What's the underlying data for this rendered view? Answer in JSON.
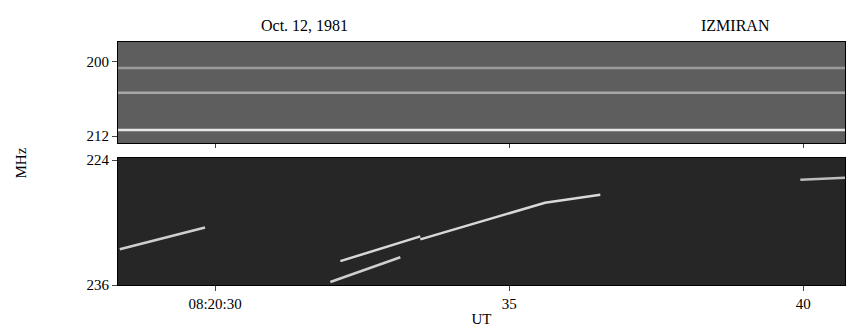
{
  "chart_data": {
    "type": "line",
    "title": "Oct. 12, 1981",
    "annotations": [
      "IZMIRAN"
    ],
    "x_label": "UT",
    "y_label": "MHz",
    "xlim": [
      28.35,
      40.71
    ],
    "xticks": [
      {
        "value": 30,
        "label": "08:20:30"
      },
      35,
      40
    ],
    "grid": false,
    "panels": [
      {
        "ylim": [
          213.1,
          196.8
        ],
        "yticks": [
          200,
          212
        ],
        "series": [
          {
            "color": "#e6e6e6",
            "x": [
              28.35,
              40.71
            ],
            "values": [
              211.0,
              211.0
            ]
          },
          {
            "color": "#a8a8a8",
            "x": [
              28.35,
              40.71
            ],
            "values": [
              205.0,
              205.0
            ]
          },
          {
            "color": "#9a9a9a",
            "x": [
              28.35,
              40.71
            ],
            "values": [
              201.0,
              201.0
            ]
          }
        ]
      },
      {
        "ylim": [
          236,
          223.8
        ],
        "yticks": [
          224,
          236
        ],
        "series": [
          {
            "color": "#cfcfcf",
            "x": [
              28.38,
              29.83
            ],
            "values": [
              232.57,
              230.48
            ]
          },
          {
            "color": "#cfcfcf",
            "x": [
              31.96,
              33.15
            ],
            "values": [
              235.71,
              233.33
            ]
          },
          {
            "color": "#d8d8d8",
            "x": [
              32.13,
              33.49
            ],
            "values": [
              233.71,
              231.33
            ]
          },
          {
            "color": "#d8d8d8",
            "x": [
              33.49,
              35.61,
              36.55
            ],
            "values": [
              231.62,
              228.1,
              227.33
            ]
          },
          {
            "color": "#bdbdbd",
            "x": [
              39.95,
              40.71
            ],
            "values": [
              225.9,
              225.7
            ]
          }
        ]
      }
    ]
  }
}
